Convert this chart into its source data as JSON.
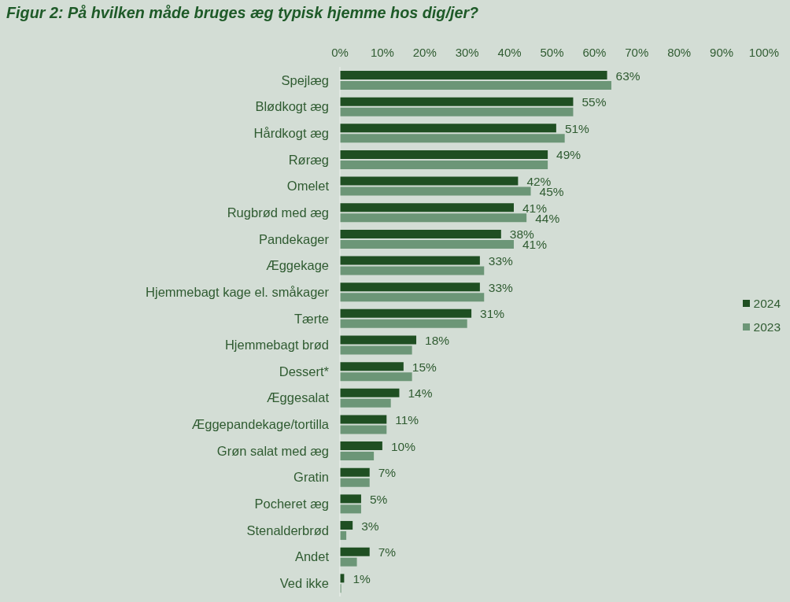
{
  "chart_data": {
    "type": "bar",
    "orientation": "horizontal",
    "title": "Figur 2: På hvilken måde bruges æg typisk hjemme hos dig/jer?",
    "categories": [
      "Spejlæg",
      "Blødkogt æg",
      "Hårdkogt æg",
      "Røræg",
      "Omelet",
      "Rugbrød med æg",
      "Pandekager",
      "Æggekage",
      "Hjemmebagt kage el. småkager",
      "Tærte",
      "Hjemmebagt brød",
      "Dessert*",
      "Æggesalat",
      "Æggepandekage/tortilla",
      "Grøn salat med æg",
      "Gratin",
      "Pocheret æg",
      "Stenalderbrød",
      "Andet",
      "Ved ikke"
    ],
    "series": [
      {
        "name": "2024",
        "color": "#1f4f22",
        "values": [
          63,
          55,
          51,
          49,
          42,
          41,
          38,
          33,
          33,
          31,
          18,
          15,
          14,
          11,
          10,
          7,
          5,
          3,
          7,
          1
        ],
        "value_labels": [
          "63%",
          "55%",
          "51%",
          "49%",
          "42%",
          "41%",
          "38%",
          "33%",
          "33%",
          "31%",
          "18%",
          "15%",
          "14%",
          "11%",
          "10%",
          "7%",
          "5%",
          "3%",
          "7%",
          "1%"
        ]
      },
      {
        "name": "2023",
        "color": "#6c9677",
        "values": [
          64,
          55,
          53,
          49,
          45,
          44,
          41,
          34,
          34,
          30,
          17,
          17,
          12,
          11,
          8,
          7,
          5,
          1.5,
          4,
          0.3
        ],
        "value_labels": [
          null,
          null,
          null,
          null,
          "45%",
          "44%",
          "41%",
          null,
          null,
          null,
          null,
          null,
          null,
          null,
          null,
          null,
          null,
          null,
          null,
          null
        ]
      }
    ],
    "xlim": [
      0,
      100
    ],
    "xticks": [
      {
        "value": 0,
        "label": "0%"
      },
      {
        "value": 10,
        "label": "10%"
      },
      {
        "value": 20,
        "label": "20%"
      },
      {
        "value": 30,
        "label": "30%"
      },
      {
        "value": 40,
        "label": "40%"
      },
      {
        "value": 50,
        "label": "50%"
      },
      {
        "value": 60,
        "label": "60%"
      },
      {
        "value": 70,
        "label": "70%"
      },
      {
        "value": 80,
        "label": "80%"
      },
      {
        "value": 90,
        "label": "90%"
      },
      {
        "value": 100,
        "label": "100%"
      }
    ],
    "legend": "right",
    "grid": false
  }
}
